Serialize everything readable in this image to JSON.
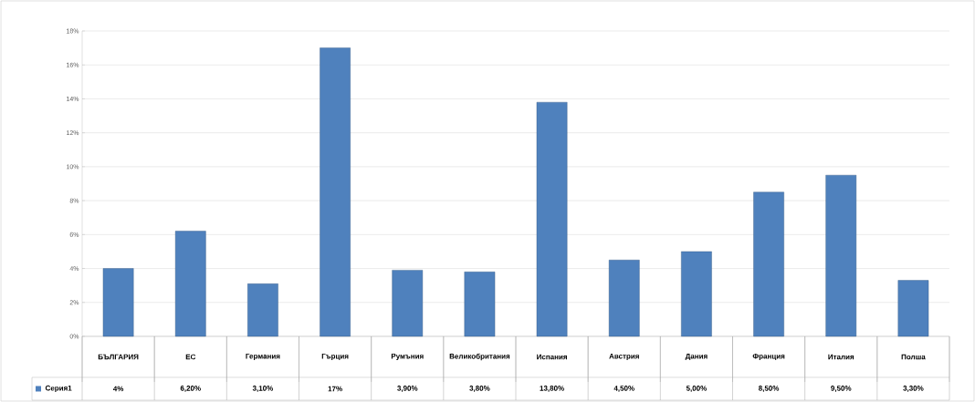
{
  "chart_data": {
    "type": "bar",
    "categories": [
      "БЪЛГАРИЯ",
      "ЕС",
      "Германия",
      "Гърция",
      "Румъния",
      "Великобритания",
      "Испания",
      "Австрия",
      "Дания",
      "Франция",
      "Италия",
      "Полша"
    ],
    "series": [
      {
        "name": "Серия1",
        "color": "#4f81bd",
        "values": [
          4,
          6.2,
          3.1,
          17,
          3.9,
          3.8,
          13.8,
          4.5,
          5.0,
          8.5,
          9.5,
          3.3
        ],
        "value_labels": [
          "4%",
          "6,20%",
          "3,10%",
          "17%",
          "3,90%",
          "3,80%",
          "13,80%",
          "4,50%",
          "5,00%",
          "8,50%",
          "9,50%",
          "3,30%"
        ]
      }
    ],
    "ylim": [
      0,
      18
    ],
    "yticks": [
      {
        "value": 0,
        "label": "0%"
      },
      {
        "value": 2,
        "label": "2%"
      },
      {
        "value": 4,
        "label": "4%"
      },
      {
        "value": 6,
        "label": "6%"
      },
      {
        "value": 8,
        "label": "8%"
      },
      {
        "value": 10,
        "label": "10%"
      },
      {
        "value": 12,
        "label": "12%"
      },
      {
        "value": 14,
        "label": "14%"
      },
      {
        "value": 16,
        "label": "16%"
      },
      {
        "value": 18,
        "label": "18%"
      }
    ],
    "grid": "y",
    "legend": "bottom left"
  }
}
